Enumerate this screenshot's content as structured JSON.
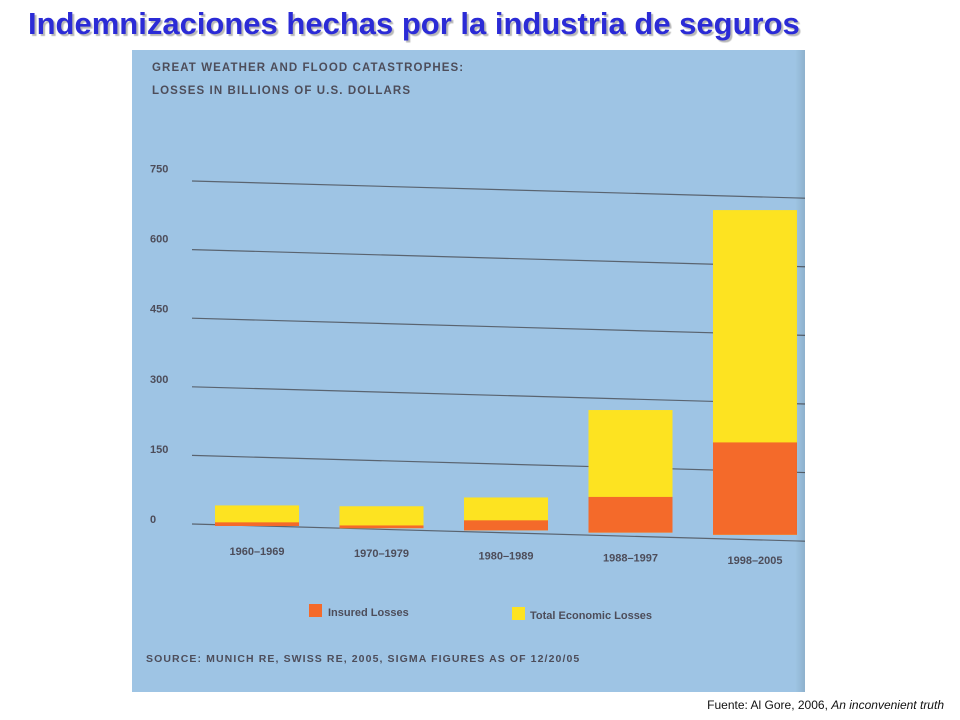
{
  "slide": {
    "title": "Indemnizaciones hechas por la industria de seguros",
    "credit_prefix": "Fuente: Al Gore, 2006, ",
    "credit_book": "An inconvenient truth"
  },
  "colors": {
    "insured": "#f46a2a",
    "total": "#fde321",
    "title": "#2b2bd6",
    "panel": "#9ec4e4",
    "gridline": "#5a6470"
  },
  "chart_data": {
    "type": "bar",
    "title_line1": "GREAT WEATHER AND FLOOD CATASTROPHES:",
    "title_line2": "LOSSES IN BILLIONS OF U.S. DOLLARS",
    "categories": [
      "1960–1969",
      "1970–1979",
      "1980–1989",
      "1988–1997",
      "1998–2005"
    ],
    "series": [
      {
        "name": "Insured Losses",
        "values": [
          8,
          6,
          22,
          78,
          202
        ]
      },
      {
        "name": "Total Economic Losses",
        "values": [
          45,
          48,
          72,
          268,
          710
        ]
      }
    ],
    "ylim": [
      0,
      750
    ],
    "yticks": [
      0,
      150,
      300,
      450,
      600,
      750
    ],
    "grid": true,
    "legend_position": "bottom",
    "source": "SOURCE: MUNICH RE, SWISS RE, 2005, SIGMA FIGURES AS OF 12/20/05"
  }
}
